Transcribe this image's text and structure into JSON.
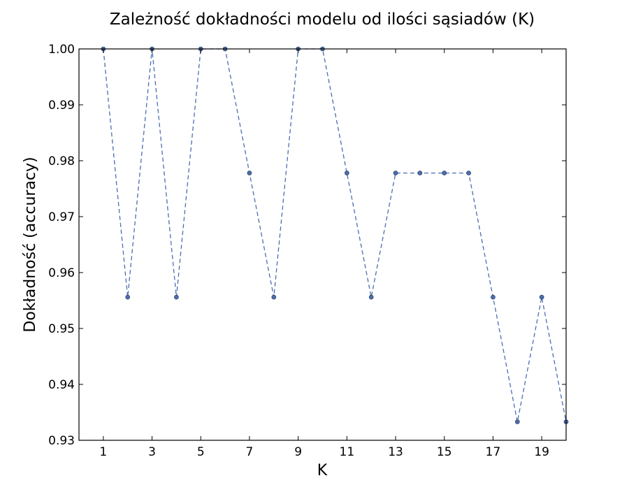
{
  "chart_data": {
    "type": "line",
    "title": "Zależność dokładności modelu od ilości sąsiadów (K)",
    "xlabel": "K",
    "ylabel": "Dokładność (accuracy)",
    "xlim": [
      0,
      20
    ],
    "ylim": [
      0.93,
      1.0
    ],
    "xticks": [
      "1",
      "3",
      "5",
      "7",
      "9",
      "11",
      "13",
      "15",
      "17",
      "19"
    ],
    "yticks": [
      "0.93",
      "0.94",
      "0.95",
      "0.96",
      "0.97",
      "0.98",
      "0.99",
      "1.00"
    ],
    "grid": false,
    "legend": "none",
    "series": [
      {
        "x": [
          1,
          2,
          3,
          4,
          5,
          6,
          7,
          8,
          9,
          10,
          11,
          12,
          13,
          14,
          15,
          16,
          17,
          18,
          19,
          20
        ],
        "values": [
          1.0,
          0.9556,
          1.0,
          0.9556,
          1.0,
          1.0,
          0.9778,
          0.9556,
          1.0,
          1.0,
          0.9778,
          0.9556,
          0.9778,
          0.9778,
          0.9778,
          0.9778,
          0.9556,
          0.9333,
          0.9556,
          0.9333
        ],
        "line_style": "dashed",
        "marker": "circle",
        "color": "#4a6eb0"
      }
    ]
  }
}
